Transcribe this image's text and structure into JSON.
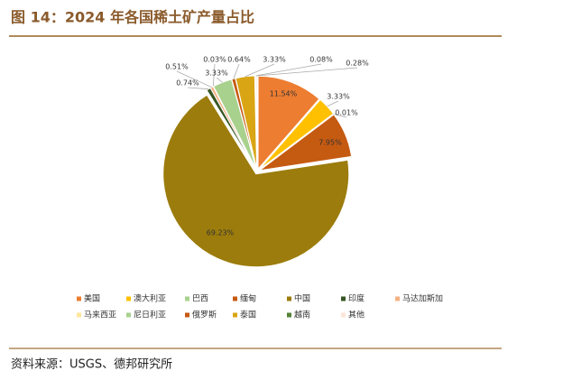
{
  "chart_data": {
    "type": "pie",
    "title": "图 14：2024 年各国稀土矿产量占比",
    "source": "资料来源：USGS、德邦研究所",
    "categories": [
      "美国",
      "澳大利亚",
      "巴西",
      "缅甸",
      "中国",
      "印度",
      "马达加斯加",
      "马来西亚",
      "尼日利亚",
      "俄罗斯",
      "泰国",
      "越南",
      "其他"
    ],
    "values": [
      11.54,
      3.33,
      0.01,
      7.95,
      69.23,
      0.74,
      0.51,
      0.03,
      3.33,
      0.64,
      3.33,
      0.08,
      0.28
    ],
    "value_labels": [
      "11.54%",
      "3.33%",
      "0.01%",
      "7.95%",
      "69.23%",
      "0.74%",
      "0.51%",
      "0.03%",
      "3.33%",
      "0.64%",
      "3.33%",
      "0.08%",
      "0.28%"
    ],
    "colors": [
      "#ed7d31",
      "#ffc000",
      "#a9d18e",
      "#c55a11",
      "#9c7c0c",
      "#375623",
      "#f4b183",
      "#ffe699",
      "#a9d18e",
      "#c55a11",
      "#d9a514",
      "#548235",
      "#fbe5d6"
    ],
    "legend": "bottom"
  }
}
